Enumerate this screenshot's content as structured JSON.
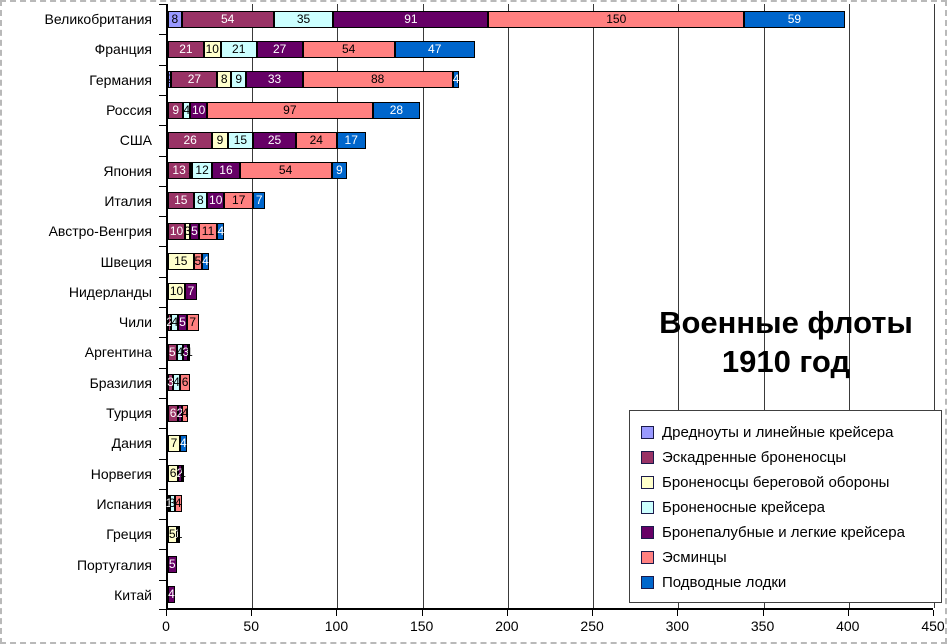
{
  "title": {
    "line1": "Военные флоты",
    "line2": "1910 год"
  },
  "chart_data": {
    "type": "bar",
    "orientation": "horizontal-stacked",
    "title": "Военные флоты 1910 год",
    "xlabel": "",
    "ylabel": "",
    "xlim": [
      0,
      450
    ],
    "grid": true,
    "legend_position": "bottom-right",
    "x_ticks": [
      0,
      50,
      100,
      150,
      200,
      250,
      300,
      350,
      400,
      450
    ],
    "series_order": [
      "dreadnoughts",
      "battleships",
      "coastal_defense",
      "armored_cruisers",
      "protected_cruisers",
      "destroyers",
      "submarines"
    ],
    "legend": [
      {
        "key": "dreadnoughts",
        "label": "Дредноуты и линейные крейсера",
        "color": "#9999FF",
        "text_color": "#000000"
      },
      {
        "key": "battleships",
        "label": "Эскадренные броненосцы",
        "color": "#993366",
        "text_color": "#FFFFFF"
      },
      {
        "key": "coastal_defense",
        "label": "Броненосцы береговой обороны",
        "color": "#FFFFCC",
        "text_color": "#000000"
      },
      {
        "key": "armored_cruisers",
        "label": "Броненосные крейсера",
        "color": "#CCFFFF",
        "text_color": "#000000"
      },
      {
        "key": "protected_cruisers",
        "label": "Бронепалубные и легкие крейсера",
        "color": "#660066",
        "text_color": "#FFFFFF"
      },
      {
        "key": "destroyers",
        "label": "Эсминцы",
        "color": "#FF8080",
        "text_color": "#000000"
      },
      {
        "key": "submarines",
        "label": "Подводные лодки",
        "color": "#0066CC",
        "text_color": "#FFFFFF"
      }
    ],
    "countries": [
      {
        "name": "Великобритания",
        "values": {
          "dreadnoughts": 8,
          "battleships": 54,
          "armored_cruisers": 35,
          "protected_cruisers": 91,
          "destroyers": 150,
          "submarines": 59
        }
      },
      {
        "name": "Франция",
        "values": {
          "battleships": 21,
          "coastal_defense": 10,
          "armored_cruisers": 21,
          "protected_cruisers": 27,
          "destroyers": 54,
          "submarines": 47
        }
      },
      {
        "name": "Германия",
        "values": {
          "dreadnoughts": 2,
          "battleships": 27,
          "coastal_defense": 8,
          "armored_cruisers": 9,
          "protected_cruisers": 33,
          "destroyers": 88,
          "submarines": 4
        }
      },
      {
        "name": "Россия",
        "values": {
          "battleships": 9,
          "armored_cruisers": 4,
          "protected_cruisers": 10,
          "destroyers": 97,
          "submarines": 28
        }
      },
      {
        "name": "США",
        "values": {
          "battleships": 26,
          "coastal_defense": 9,
          "armored_cruisers": 15,
          "protected_cruisers": 25,
          "destroyers": 24,
          "submarines": 17
        }
      },
      {
        "name": "Япония",
        "values": {
          "battleships": 13,
          "coastal_defense": 1,
          "armored_cruisers": 12,
          "protected_cruisers": 16,
          "destroyers": 54,
          "submarines": 9
        }
      },
      {
        "name": "Италия",
        "values": {
          "battleships": 15,
          "armored_cruisers": 8,
          "protected_cruisers": 10,
          "destroyers": 17,
          "submarines": 7
        }
      },
      {
        "name": "Австро-Венгрия",
        "values": {
          "battleships": 10,
          "coastal_defense": 3,
          "protected_cruisers": 5,
          "destroyers": 11,
          "submarines": 4
        }
      },
      {
        "name": "Швеция",
        "values": {
          "coastal_defense": 15,
          "destroyers": 5,
          "submarines": 4
        }
      },
      {
        "name": "Нидерланды",
        "values": {
          "coastal_defense": 10,
          "protected_cruisers": 7
        }
      },
      {
        "name": "Чили",
        "values": {
          "battleships": 2,
          "armored_cruisers": 4,
          "protected_cruisers": 5,
          "destroyers": 7
        }
      },
      {
        "name": "Аргентина",
        "values": {
          "battleships": 5,
          "armored_cruisers": 4,
          "protected_cruisers": 3,
          "destroyers": 1
        }
      },
      {
        "name": "Бразилия",
        "values": {
          "battleships": 3,
          "armored_cruisers": 4,
          "destroyers": 6
        }
      },
      {
        "name": "Турция",
        "values": {
          "battleships": 6,
          "protected_cruisers": 2,
          "destroyers": 4
        }
      },
      {
        "name": "Дания",
        "values": {
          "coastal_defense": 7,
          "submarines": 4
        }
      },
      {
        "name": "Норвегия",
        "values": {
          "coastal_defense": 6,
          "protected_cruisers": 2,
          "destroyers": 1
        }
      },
      {
        "name": "Испания",
        "values": {
          "battleships": 1,
          "armored_cruisers": 3,
          "destroyers": 4
        }
      },
      {
        "name": "Греция",
        "values": {
          "coastal_defense": 5,
          "protected_cruisers": 1,
          "destroyers": 1
        }
      },
      {
        "name": "Португалия",
        "values": {
          "protected_cruisers": 5
        }
      },
      {
        "name": "Китай",
        "values": {
          "protected_cruisers": 4
        }
      }
    ]
  }
}
